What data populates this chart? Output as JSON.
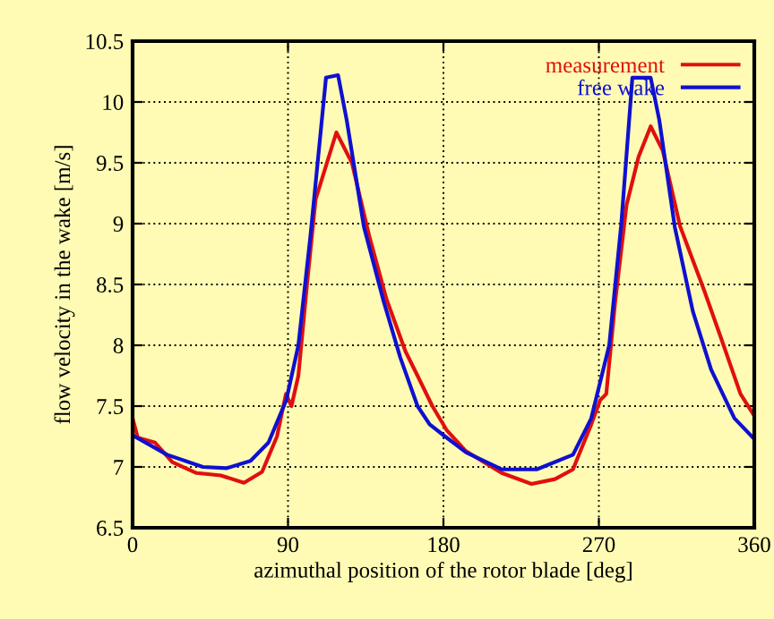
{
  "chart_data": {
    "type": "line",
    "xlabel": "azimuthal position of the rotor blade [deg]",
    "ylabel": "flow velocity in the wake [m/s]",
    "xlim": [
      0,
      360
    ],
    "ylim": [
      6.5,
      10.5
    ],
    "xticks": [
      0,
      90,
      180,
      270,
      360
    ],
    "yticks": [
      6.5,
      7,
      7.5,
      8,
      8.5,
      9,
      9.5,
      10,
      10.5
    ],
    "grid": true,
    "legend": "top right",
    "line_style": "solid",
    "marker": "none",
    "series": [
      {
        "name": "measurement",
        "color": "#e01010",
        "x": [
          0,
          3,
          13,
          23,
          37,
          51,
          64.5,
          75,
          83.6,
          88.8,
          92,
          96,
          101,
          106,
          118,
          127,
          137,
          147,
          158,
          165,
          173.6,
          182,
          193,
          213.7,
          231,
          244.6,
          255,
          265.6,
          270.8,
          274.3,
          279.4,
          286,
          293,
          300,
          307,
          317,
          331,
          341,
          352,
          360
        ],
        "values": [
          7.4,
          7.24,
          7.2,
          7.04,
          6.95,
          6.93,
          6.87,
          6.96,
          7.25,
          7.6,
          7.5,
          7.75,
          8.5,
          9.2,
          9.75,
          9.5,
          8.9,
          8.38,
          7.95,
          7.75,
          7.5,
          7.3,
          7.13,
          6.95,
          6.86,
          6.9,
          6.98,
          7.35,
          7.55,
          7.6,
          8.35,
          9.15,
          9.55,
          9.8,
          9.6,
          8.98,
          8.45,
          8.05,
          7.6,
          7.42
        ]
      },
      {
        "name": "free wake",
        "color": "#1010d0",
        "x": [
          0,
          20,
          40.7,
          54.5,
          68.3,
          78.7,
          89,
          96,
          103,
          112,
          119,
          124,
          134,
          145,
          155,
          165,
          172,
          181,
          193,
          213.7,
          234,
          255,
          265.6,
          276,
          283,
          289.4,
          300,
          305,
          314,
          324.4,
          335,
          348.5,
          360
        ],
        "values": [
          7.26,
          7.1,
          7.0,
          6.99,
          7.05,
          7.2,
          7.55,
          8.0,
          8.9,
          10.2,
          10.22,
          9.85,
          8.97,
          8.38,
          7.9,
          7.5,
          7.35,
          7.25,
          7.12,
          6.98,
          6.98,
          7.1,
          7.4,
          8.0,
          9.0,
          10.2,
          10.2,
          9.85,
          8.97,
          8.28,
          7.8,
          7.4,
          7.23
        ]
      }
    ]
  }
}
